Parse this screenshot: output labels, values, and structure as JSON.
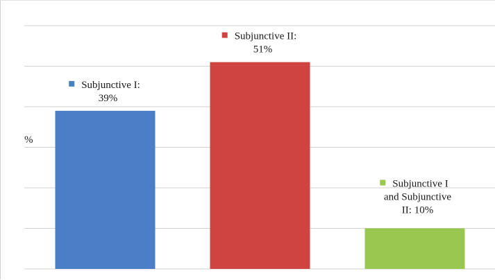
{
  "chart_data": {
    "type": "bar",
    "title": "",
    "xlabel": "",
    "ylabel": "%",
    "ylim": [
      0,
      60
    ],
    "grid": true,
    "legend": "none",
    "categories": [
      "Subjunctive I",
      "Subjunctive II",
      "Subjunctive I and Subjunctive II"
    ],
    "values": [
      39,
      51,
      10
    ],
    "colors": [
      "#4a7fc8",
      "#cf4340",
      "#9ac750"
    ],
    "data_labels": [
      [
        "Subjunctive I:",
        "39%"
      ],
      [
        "Subjunctive II:",
        "51%"
      ],
      [
        "Subjunctive I",
        "and Subjunctive",
        "II:  10%"
      ]
    ]
  }
}
